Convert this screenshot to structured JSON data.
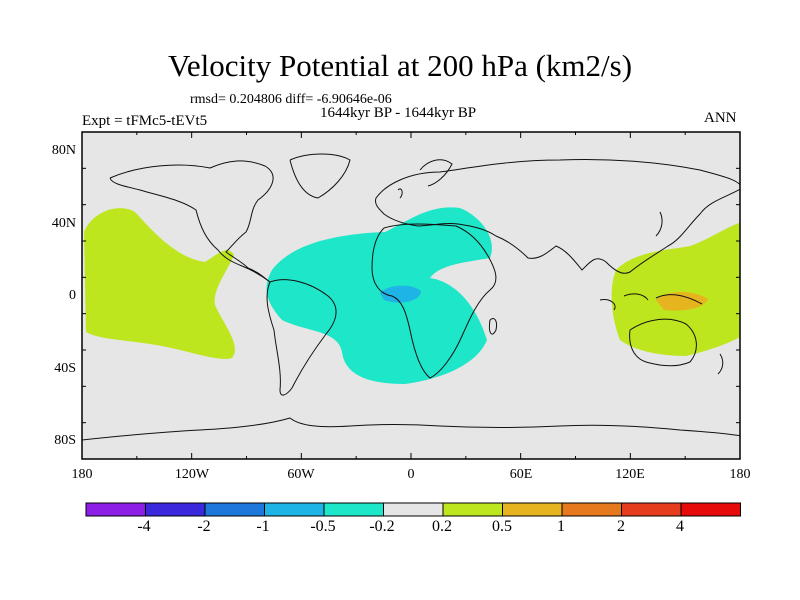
{
  "title": "Velocity Potential at 200 hPa (km2/s)",
  "stats_line": "rmsd= 0.204806 diff= -6.90646e-06",
  "period": "1644kyr BP - 1644kyr BP",
  "experiment": "Expt = tFMc5-tEVt5",
  "season": "ANN",
  "map": {
    "lat_ticks": [
      "80N",
      "40N",
      "0",
      "40S",
      "80S"
    ],
    "lon_ticks": [
      "180",
      "120W",
      "60W",
      "0",
      "60E",
      "120E",
      "180"
    ],
    "background_color": "#e6e6e6"
  },
  "colorbar": {
    "labels": [
      "-4",
      "-2",
      "-1",
      "-0.5",
      "-0.2",
      "0.2",
      "0.5",
      "1",
      "2",
      "4"
    ],
    "colors": [
      "#8c1ee6",
      "#3c28dc",
      "#1e78dc",
      "#1eb4e6",
      "#1ee6c8",
      "#e6e6e6",
      "#bee61e",
      "#e6b41e",
      "#e6781e",
      "#e63c1e",
      "#e60a0a"
    ]
  },
  "regions": [
    {
      "name": "pacific-positive",
      "level": "0.2 to 0.5",
      "color": "#bee61e"
    },
    {
      "name": "atlantic-africa-negative",
      "level": "-0.5 to -0.2",
      "color": "#1ee6c8"
    },
    {
      "name": "gulf-of-guinea-negative",
      "level": "-1 to -0.5",
      "color": "#1eb4e6"
    },
    {
      "name": "maritime-continent-positive",
      "level": "0.2 to 0.5",
      "color": "#bee61e"
    },
    {
      "name": "new-guinea-positive",
      "level": "0.5 to 1",
      "color": "#e6b41e"
    }
  ]
}
